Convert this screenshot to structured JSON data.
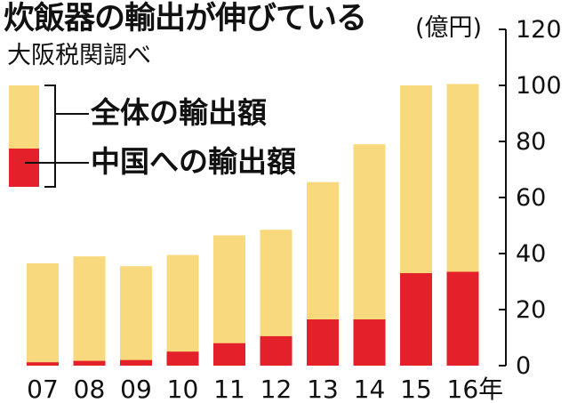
{
  "title": "炊飯器の輸出が伸びている",
  "source": "大阪税関調べ",
  "unit": "(億円)",
  "legend": [
    {
      "label": "全体の輸出額",
      "color": "#F9D97E"
    },
    {
      "label": "中国への輸出額",
      "color": "#E4202A"
    }
  ],
  "chart_data": {
    "type": "bar",
    "stacked": "overlay",
    "categories": [
      "07",
      "08",
      "09",
      "10",
      "11",
      "12",
      "13",
      "14",
      "15",
      "16年"
    ],
    "series": [
      {
        "name": "全体の輸出額",
        "values": [
          36.5,
          39,
          35.5,
          39.5,
          46.5,
          48.5,
          65.5,
          79,
          100,
          100.5
        ]
      },
      {
        "name": "中国への輸出額",
        "values": [
          1.2,
          1.7,
          2,
          5,
          8,
          10.5,
          16.5,
          16.5,
          33,
          33.5
        ]
      }
    ],
    "yticks": [
      0,
      20,
      40,
      60,
      80,
      100,
      120
    ],
    "ylim": [
      0,
      120
    ],
    "ylabel": "(億円)",
    "axis_position": "right",
    "grid": false,
    "legend_position": "top-left"
  }
}
